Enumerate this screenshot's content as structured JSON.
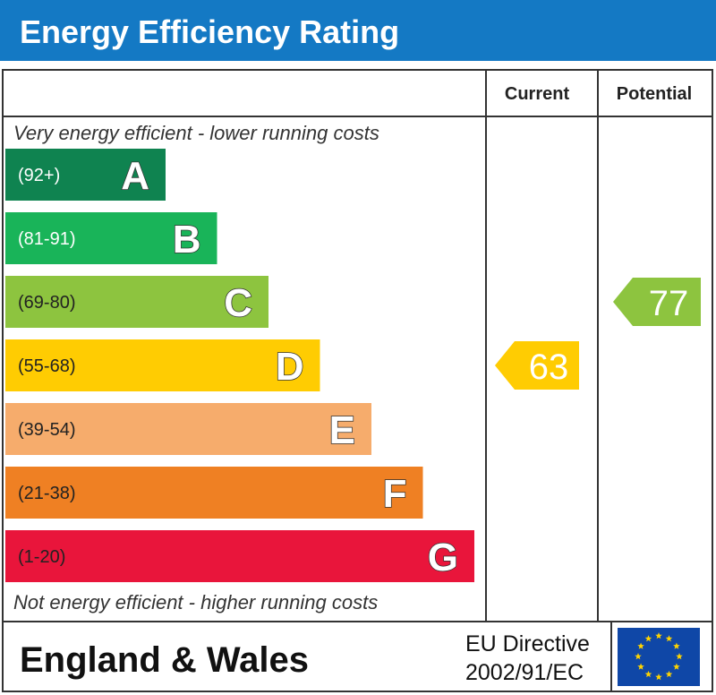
{
  "title": "Energy Efficiency Rating",
  "columns": {
    "current": "Current",
    "potential": "Potential"
  },
  "top_note": "Very energy efficient - lower running costs",
  "bottom_note": "Not energy efficient - higher running costs",
  "footer": {
    "region": "England & Wales",
    "directive_line1": "EU Directive",
    "directive_line2": "2002/91/EC"
  },
  "colors": {
    "title_bg": "#1479c4",
    "eu_flag": "#0f47a7",
    "eu_stars": "#ffd400"
  },
  "chart_data": {
    "type": "bar",
    "bands": [
      {
        "letter": "A",
        "range": "(92+)",
        "color": "#0f8350",
        "text_color": "#ffffff"
      },
      {
        "letter": "B",
        "range": "(81-91)",
        "color": "#19b459",
        "text_color": "#ffffff"
      },
      {
        "letter": "C",
        "range": "(69-80)",
        "color": "#8dc43f",
        "text_color": "#222222"
      },
      {
        "letter": "D",
        "range": "(55-68)",
        "color": "#ffcc02",
        "text_color": "#222222"
      },
      {
        "letter": "E",
        "range": "(39-54)",
        "color": "#f6ac6c",
        "text_color": "#222222"
      },
      {
        "letter": "F",
        "range": "(21-38)",
        "color": "#ef8023",
        "text_color": "#222222"
      },
      {
        "letter": "G",
        "range": "(1-20)",
        "color": "#e9153b",
        "text_color": "#222222"
      }
    ],
    "current": {
      "value": 63,
      "band": "D",
      "color": "#ffcc02"
    },
    "potential": {
      "value": 77,
      "band": "C",
      "color": "#8dc43f"
    }
  }
}
